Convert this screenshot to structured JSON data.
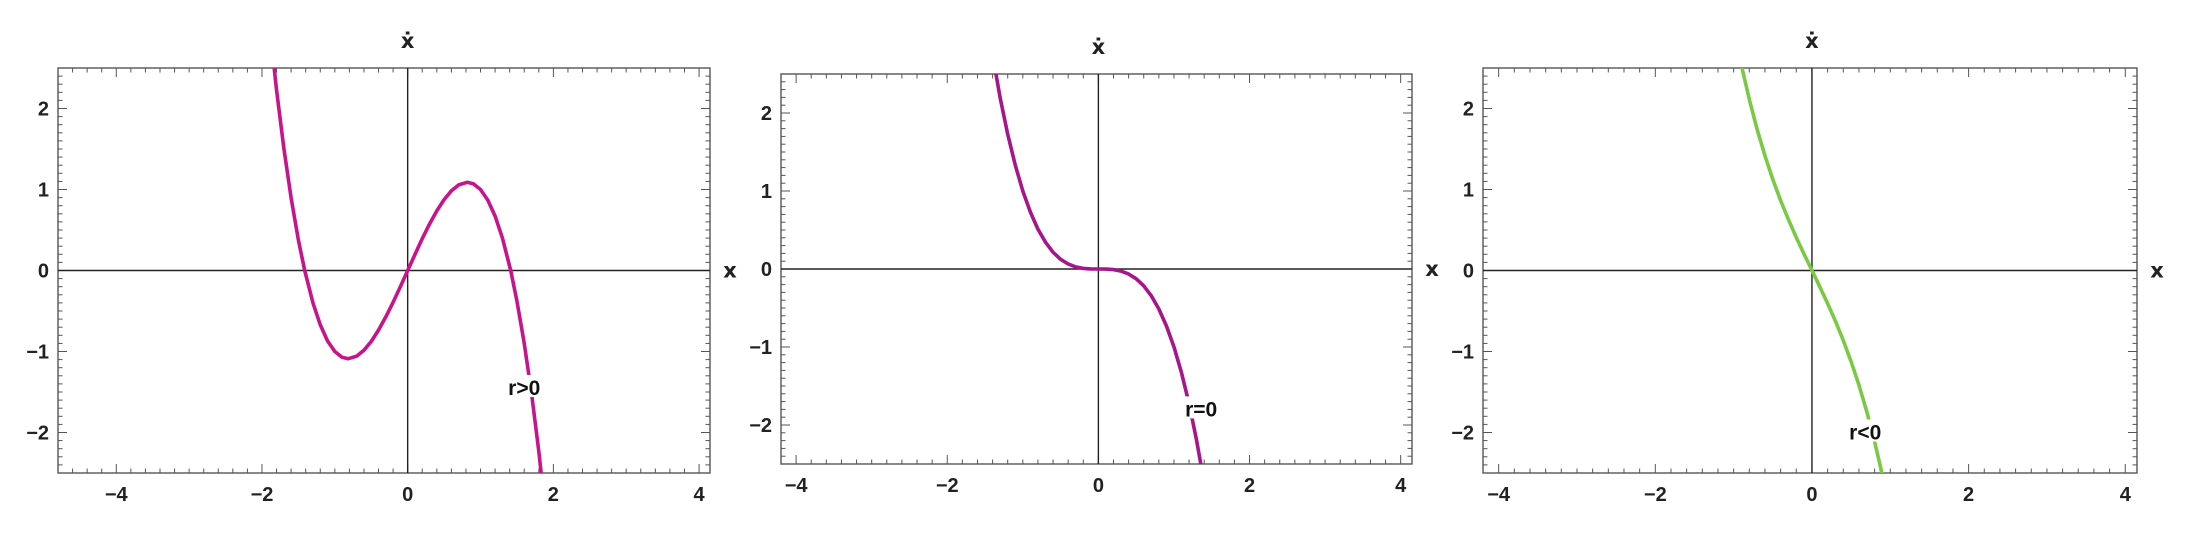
{
  "chart_data": [
    {
      "type": "line",
      "xlabel": "x",
      "ylabel": "ẋ",
      "xlim": [
        -4.8,
        4.15
      ],
      "ylim": [
        -2.5,
        2.5
      ],
      "xticks": [
        -4,
        -2,
        0,
        2,
        4
      ],
      "yticks": [
        -2,
        -1,
        0,
        1,
        2
      ],
      "xtick_labels": [
        "−4",
        "−2",
        "0",
        "2",
        "4"
      ],
      "ytick_labels": [
        "−2",
        "−1",
        "0",
        "1",
        "2"
      ],
      "grid": false,
      "series": [
        {
          "name": "r>0",
          "color": "#C8148C",
          "x": [
            -1.9,
            -1.8,
            -1.7,
            -1.6,
            -1.5,
            -1.4142,
            -1.3,
            -1.2,
            -1.1,
            -1.0,
            -0.9,
            -0.8165,
            -0.7,
            -0.6,
            -0.5,
            -0.4,
            -0.3,
            -0.2,
            -0.1,
            0.0,
            0.1,
            0.2,
            0.3,
            0.4,
            0.5,
            0.6,
            0.7,
            0.8165,
            0.9,
            1.0,
            1.1,
            1.2,
            1.3,
            1.4142,
            1.5,
            1.6,
            1.7,
            1.8,
            1.9
          ],
          "y": [
            3.059,
            2.232,
            1.513,
            0.896,
            0.375,
            0.0,
            -0.403,
            -0.672,
            -0.869,
            -1.0,
            -1.071,
            -1.089,
            -1.057,
            -0.984,
            -0.875,
            -0.736,
            -0.573,
            -0.392,
            -0.199,
            0.0,
            0.199,
            0.392,
            0.573,
            0.736,
            0.875,
            0.984,
            1.057,
            1.089,
            1.071,
            1.0,
            0.869,
            0.672,
            0.403,
            0.0,
            -0.375,
            -0.896,
            -1.513,
            -2.232,
            -3.059
          ]
        }
      ],
      "annotations": [
        {
          "text": "r>0",
          "x": 1.6,
          "y": -1.45
        }
      ]
    },
    {
      "type": "line",
      "xlabel": "x",
      "ylabel": "ẋ",
      "xlim": [
        -4.2,
        4.15
      ],
      "ylim": [
        -2.5,
        2.5
      ],
      "xticks": [
        -4,
        -2,
        0,
        2,
        4
      ],
      "yticks": [
        -2,
        -1,
        0,
        1,
        2
      ],
      "xtick_labels": [
        "−4",
        "−2",
        "0",
        "2",
        "4"
      ],
      "ytick_labels": [
        "−2",
        "−1",
        "0",
        "1",
        "2"
      ],
      "grid": false,
      "series": [
        {
          "name": "r=0",
          "color": "#A8148C",
          "x": [
            -1.45,
            -1.4,
            -1.3,
            -1.2,
            -1.1,
            -1.0,
            -0.9,
            -0.8,
            -0.7,
            -0.6,
            -0.5,
            -0.4,
            -0.3,
            -0.2,
            -0.1,
            0.0,
            0.1,
            0.2,
            0.3,
            0.4,
            0.5,
            0.6,
            0.7,
            0.8,
            0.9,
            1.0,
            1.1,
            1.2,
            1.3,
            1.4,
            1.45
          ],
          "y": [
            3.049,
            2.744,
            2.197,
            1.728,
            1.331,
            1.0,
            0.729,
            0.512,
            0.343,
            0.216,
            0.125,
            0.064,
            0.027,
            0.008,
            0.001,
            0.0,
            -0.001,
            -0.008,
            -0.027,
            -0.064,
            -0.125,
            -0.216,
            -0.343,
            -0.512,
            -0.729,
            -1.0,
            -1.331,
            -1.728,
            -2.197,
            -2.744,
            -3.049
          ]
        }
      ],
      "annotations": [
        {
          "text": "r=0",
          "x": 1.36,
          "y": -1.8
        }
      ]
    },
    {
      "type": "line",
      "xlabel": "x",
      "ylabel": "ẋ",
      "xlim": [
        -4.2,
        4.15
      ],
      "ylim": [
        -2.5,
        2.5
      ],
      "xticks": [
        -4,
        -2,
        0,
        2,
        4
      ],
      "yticks": [
        -2,
        -1,
        0,
        1,
        2
      ],
      "xtick_labels": [
        "−4",
        "−2",
        "0",
        "2",
        "4"
      ],
      "ytick_labels": [
        "−2",
        "−1",
        "0",
        "1",
        "2"
      ],
      "grid": false,
      "series": [
        {
          "name": "r<0",
          "color": "#7AC943",
          "x": [
            -1.0,
            -0.9,
            -0.8,
            -0.7,
            -0.6,
            -0.5,
            -0.4,
            -0.3,
            -0.2,
            -0.1,
            0.0,
            0.1,
            0.2,
            0.3,
            0.4,
            0.5,
            0.6,
            0.7,
            0.8,
            0.9,
            1.0
          ],
          "y": [
            3.0,
            2.529,
            2.112,
            1.743,
            1.416,
            1.125,
            0.864,
            0.627,
            0.408,
            0.201,
            0.0,
            -0.201,
            -0.408,
            -0.627,
            -0.864,
            -1.125,
            -1.416,
            -1.743,
            -2.112,
            -2.529,
            -3.0
          ]
        }
      ],
      "annotations": [
        {
          "text": "r<0",
          "x": 0.68,
          "y": -2.0
        }
      ]
    }
  ]
}
